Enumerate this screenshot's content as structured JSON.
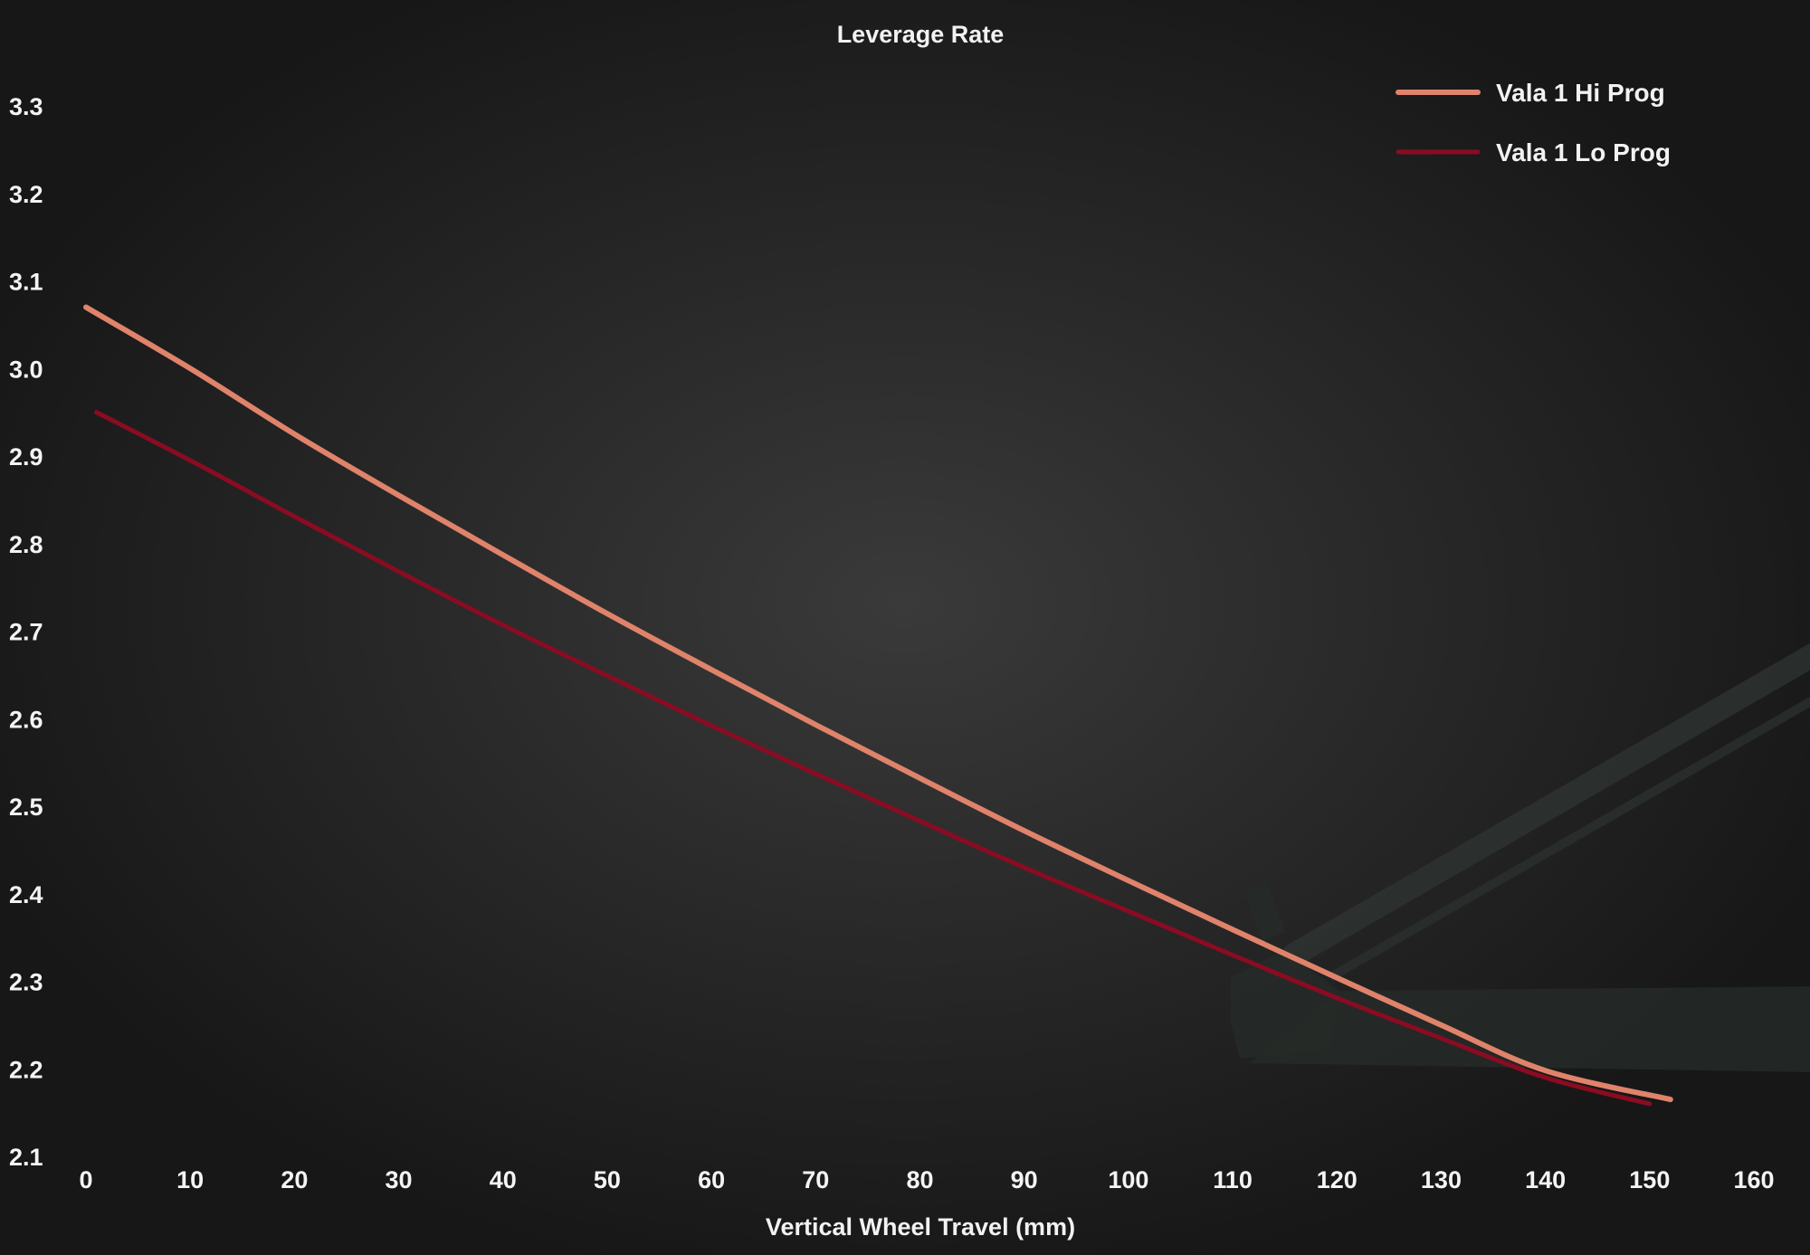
{
  "chart_data": {
    "type": "line",
    "title": "Leverage Rate",
    "xlabel": "Vertical Wheel Travel (mm)",
    "ylabel": "",
    "xlim": [
      0,
      160
    ],
    "ylim": [
      2.1,
      3.3
    ],
    "x_ticks": [
      "0",
      "10",
      "20",
      "30",
      "40",
      "50",
      "60",
      "70",
      "80",
      "90",
      "100",
      "110",
      "120",
      "130",
      "140",
      "150",
      "160"
    ],
    "y_ticks": [
      "2.1",
      "2.2",
      "2.3",
      "2.4",
      "2.5",
      "2.6",
      "2.7",
      "2.8",
      "2.9",
      "3.0",
      "3.1",
      "3.2",
      "3.3"
    ],
    "grid": false,
    "legend_position": "top-right",
    "series": [
      {
        "name": "Vala 1 Hi Prog",
        "color": "#e0836b",
        "x": [
          0,
          10,
          20,
          30,
          40,
          50,
          60,
          70,
          80,
          90,
          100,
          110,
          120,
          130,
          140,
          152
        ],
        "y": [
          3.07,
          3.0,
          2.925,
          2.855,
          2.787,
          2.72,
          2.656,
          2.593,
          2.532,
          2.472,
          2.415,
          2.359,
          2.304,
          2.25,
          2.198,
          2.165
        ]
      },
      {
        "name": "Vala 1 Lo Prog",
        "color": "#8a0c22",
        "x": [
          1,
          10,
          20,
          30,
          40,
          50,
          60,
          70,
          80,
          90,
          100,
          110,
          120,
          130,
          140,
          150
        ],
        "y": [
          2.95,
          2.895,
          2.831,
          2.768,
          2.707,
          2.649,
          2.592,
          2.537,
          2.483,
          2.43,
          2.38,
          2.33,
          2.281,
          2.235,
          2.19,
          2.16
        ]
      }
    ]
  }
}
